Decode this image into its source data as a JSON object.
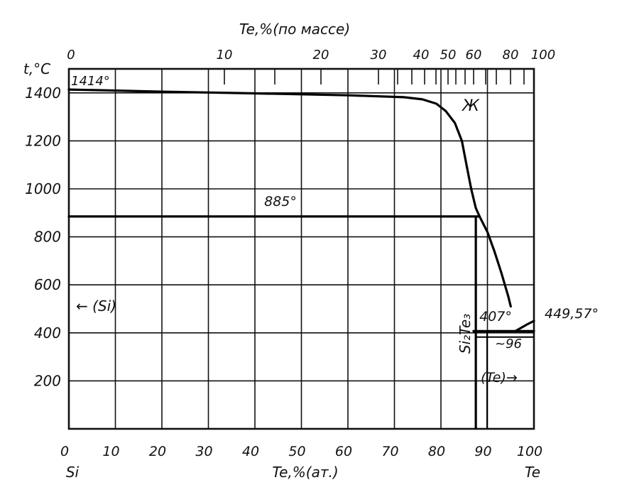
{
  "chart_data": {
    "type": "line",
    "x_bottom_label": "Te,%(ат.)",
    "x_top_label": "Te,%(по массе)",
    "y_label": "t,°C",
    "x_ticks_bottom": [
      "0",
      "10",
      "20",
      "30",
      "40",
      "50",
      "60",
      "70",
      "80",
      "90",
      "100"
    ],
    "x_ticks_top": [
      "0",
      "10",
      "20",
      "30",
      "40",
      "50",
      "60",
      "80",
      "100"
    ],
    "y_ticks": [
      "1400",
      "1200",
      "1000",
      "800",
      "600",
      "400",
      "200"
    ],
    "xlim": [
      0,
      100
    ],
    "ylim": [
      0,
      1500
    ],
    "left_component": "Si",
    "right_component": "Te",
    "series": [
      {
        "values": [
          [
            0,
            1414
          ],
          [
            20,
            1405
          ],
          [
            40,
            1398
          ],
          [
            60,
            1390
          ],
          [
            72,
            1382
          ],
          [
            76,
            1373
          ],
          [
            79,
            1355
          ],
          [
            81,
            1325
          ],
          [
            83,
            1275
          ],
          [
            84.5,
            1200
          ],
          [
            85.5,
            1100
          ],
          [
            86.5,
            1000
          ],
          [
            87.5,
            920
          ],
          [
            88.3,
            885
          ],
          [
            90,
            820
          ],
          [
            91.5,
            740
          ],
          [
            93,
            650
          ],
          [
            94.5,
            550
          ],
          [
            95,
            510
          ]
        ]
      },
      {
        "values": [
          [
            0,
            885
          ],
          [
            88.3,
            885
          ]
        ]
      },
      {
        "values": [
          [
            87,
            407
          ],
          [
            100,
            407
          ]
        ]
      },
      {
        "values": [
          [
            96,
            407
          ],
          [
            98.5,
            435
          ],
          [
            100,
            449.57
          ]
        ]
      }
    ],
    "compound": {
      "label": "Si₂Te₃",
      "x": 87.5
    },
    "annotations": {
      "melt_si": "1414°",
      "eutectic_high": "885°",
      "eutectic_low": "407°",
      "melt_te": "449,57°",
      "eutectic_comp": "~96",
      "liquid": "Ж",
      "si_solid": "← (Si)",
      "te_solid": "(Te)→"
    }
  }
}
